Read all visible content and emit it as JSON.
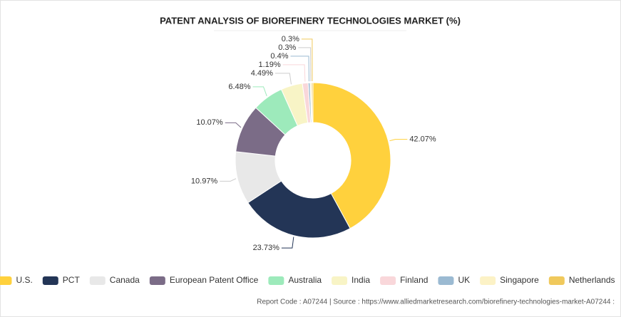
{
  "chart_data": {
    "type": "donut",
    "title": "PATENT ANALYSIS OF BIOREFINERY TECHNOLOGIES MARKET (%)",
    "categories": [
      "U.S.",
      "PCT",
      "Canada",
      "European Patent Office",
      "Australia",
      "India",
      "Finland",
      "UK",
      "Singapore",
      "Netherlands"
    ],
    "values": [
      42.07,
      23.73,
      10.97,
      10.07,
      6.48,
      4.49,
      1.19,
      0.4,
      0.3,
      0.3
    ],
    "value_labels": [
      "42.07%",
      "23.73%",
      "10.97%",
      "10.07%",
      "6.48%",
      "4.49%",
      "1.19%",
      "0.4%",
      "0.3%",
      "0.3%"
    ],
    "colors": [
      "#ffd13d",
      "#233556",
      "#e8e8e8",
      "#7b6c87",
      "#9deabb",
      "#f8f4c6",
      "#f9d7da",
      "#9bbad2",
      "#fcf2c6",
      "#f0c95c"
    ],
    "legend": "bottom",
    "footer": "Report Code : A07244  |  Source : https://www.alliedmarketresearch.com/biorefinery-technologies-market-A07244 :"
  }
}
